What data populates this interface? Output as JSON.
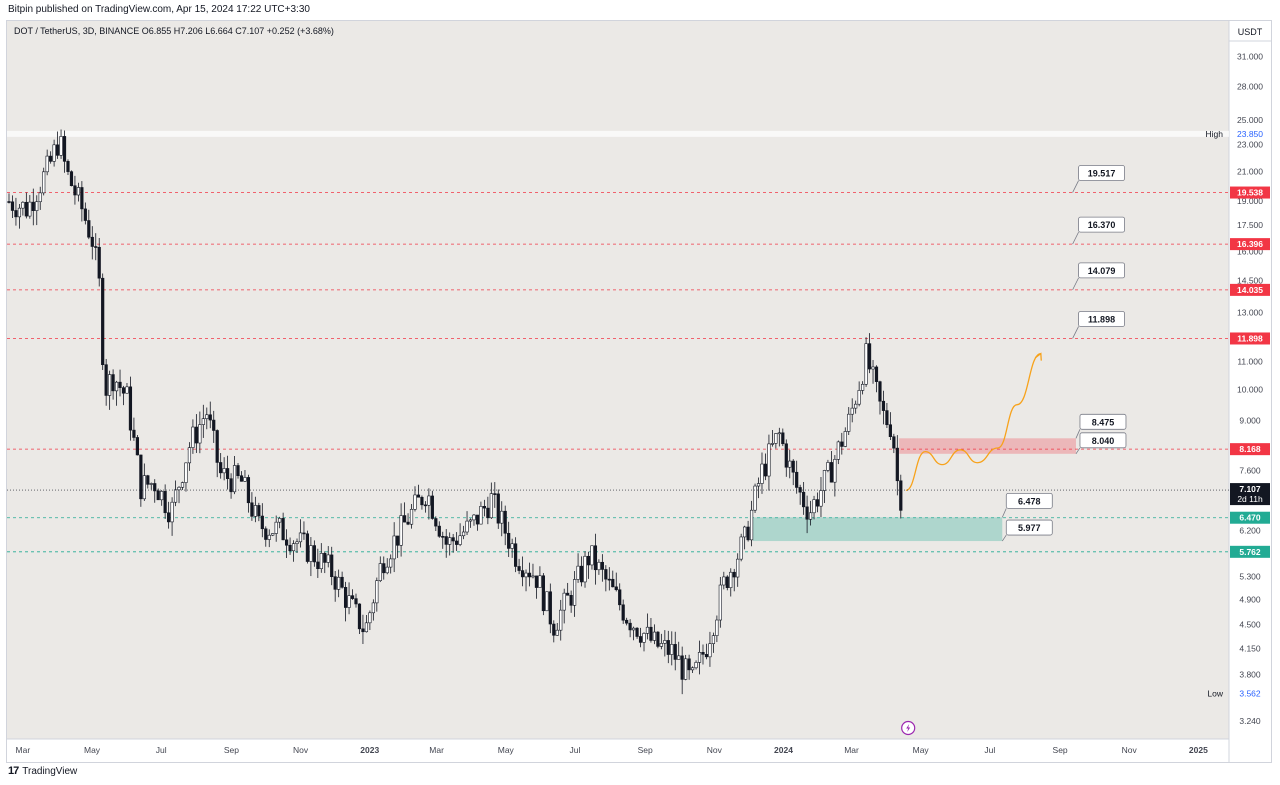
{
  "header": {
    "publisher_line": "Bitpin published on TradingView.com, Apr 15, 2024 17:22 UTC+3:30",
    "symbol_line": "DOT / TetherUS, 3D, BINANCE  O6.855  H7.206  L6.664  C7.107  +0.252 (+3.68%)"
  },
  "footer": {
    "brand": "TradingView",
    "logo_text": "17"
  },
  "colors": {
    "background": "#ebe9e6",
    "bull": "#ffffff",
    "bear": "#131722",
    "resistance": "#f23645",
    "support": "#22ab94",
    "projection": "#f7a21b"
  },
  "chart_data": {
    "type": "candlestick",
    "title": "",
    "xlabel": "",
    "ylabel": "",
    "y_scale": "log",
    "currency_label": "USDT",
    "ylim": [
      3.05,
      35.0
    ],
    "x_range": [
      "2022-02-15",
      "2025-01-28"
    ],
    "y_ticks": [
      "31.000",
      "28.000",
      "25.000",
      "23.000",
      "21.000",
      "19.000",
      "17.500",
      "16.000",
      "14.500",
      "13.000",
      "11.000",
      "10.000",
      "9.000",
      "7.600",
      "6.200",
      "5.300",
      "4.900",
      "4.500",
      "4.150",
      "3.800",
      "3.240"
    ],
    "x_ticks": [
      {
        "date": "2022-03-01",
        "label": "Mar",
        "bold": false
      },
      {
        "date": "2022-05-01",
        "label": "May",
        "bold": false
      },
      {
        "date": "2022-07-01",
        "label": "Jul",
        "bold": false
      },
      {
        "date": "2022-09-01",
        "label": "Sep",
        "bold": false
      },
      {
        "date": "2022-11-01",
        "label": "Nov",
        "bold": false
      },
      {
        "date": "2023-01-01",
        "label": "2023",
        "bold": true
      },
      {
        "date": "2023-03-01",
        "label": "Mar",
        "bold": false
      },
      {
        "date": "2023-05-01",
        "label": "May",
        "bold": false
      },
      {
        "date": "2023-07-01",
        "label": "Jul",
        "bold": false
      },
      {
        "date": "2023-09-01",
        "label": "Sep",
        "bold": false
      },
      {
        "date": "2023-11-01",
        "label": "Nov",
        "bold": false
      },
      {
        "date": "2024-01-01",
        "label": "2024",
        "bold": true
      },
      {
        "date": "2024-03-01",
        "label": "Mar",
        "bold": false
      },
      {
        "date": "2024-05-01",
        "label": "May",
        "bold": false
      },
      {
        "date": "2024-07-01",
        "label": "Jul",
        "bold": false
      },
      {
        "date": "2024-09-01",
        "label": "Sep",
        "bold": false
      },
      {
        "date": "2024-11-01",
        "label": "Nov",
        "bold": false
      },
      {
        "date": "2025-01-01",
        "label": "2025",
        "bold": true
      }
    ],
    "price_path": [
      {
        "date": "2022-02-15",
        "price": 19.0
      },
      {
        "date": "2022-03-05",
        "price": 18.5
      },
      {
        "date": "2022-03-25",
        "price": 21.5
      },
      {
        "date": "2022-04-02",
        "price": 23.5
      },
      {
        "date": "2022-04-08",
        "price": 21.0
      },
      {
        "date": "2022-04-22",
        "price": 18.5
      },
      {
        "date": "2022-05-02",
        "price": 16.5
      },
      {
        "date": "2022-05-08",
        "price": 14.0
      },
      {
        "date": "2022-05-12",
        "price": 10.0
      },
      {
        "date": "2022-05-20",
        "price": 10.5
      },
      {
        "date": "2022-06-01",
        "price": 9.7
      },
      {
        "date": "2022-06-13",
        "price": 7.2
      },
      {
        "date": "2022-06-25",
        "price": 7.3
      },
      {
        "date": "2022-07-10",
        "price": 6.6
      },
      {
        "date": "2022-07-25",
        "price": 8.2
      },
      {
        "date": "2022-08-10",
        "price": 9.3
      },
      {
        "date": "2022-08-22",
        "price": 7.5
      },
      {
        "date": "2022-09-10",
        "price": 7.3
      },
      {
        "date": "2022-09-25",
        "price": 6.3
      },
      {
        "date": "2022-10-15",
        "price": 6.2
      },
      {
        "date": "2022-11-08",
        "price": 5.8
      },
      {
        "date": "2022-11-28",
        "price": 5.4
      },
      {
        "date": "2022-12-15",
        "price": 4.8
      },
      {
        "date": "2022-12-28",
        "price": 4.4
      },
      {
        "date": "2023-01-12",
        "price": 5.6
      },
      {
        "date": "2023-02-05",
        "price": 6.5
      },
      {
        "date": "2023-02-20",
        "price": 7.1
      },
      {
        "date": "2023-03-10",
        "price": 5.9
      },
      {
        "date": "2023-04-01",
        "price": 6.3
      },
      {
        "date": "2023-04-18",
        "price": 6.9
      },
      {
        "date": "2023-05-10",
        "price": 5.7
      },
      {
        "date": "2023-05-28",
        "price": 5.3
      },
      {
        "date": "2023-06-12",
        "price": 4.5
      },
      {
        "date": "2023-06-28",
        "price": 5.0
      },
      {
        "date": "2023-07-14",
        "price": 5.7
      },
      {
        "date": "2023-08-01",
        "price": 5.1
      },
      {
        "date": "2023-08-17",
        "price": 4.6
      },
      {
        "date": "2023-09-10",
        "price": 4.2
      },
      {
        "date": "2023-09-25",
        "price": 4.1
      },
      {
        "date": "2023-10-12",
        "price": 3.7
      },
      {
        "date": "2023-10-25",
        "price": 4.2
      },
      {
        "date": "2023-11-10",
        "price": 5.2
      },
      {
        "date": "2023-11-28",
        "price": 6.0
      },
      {
        "date": "2023-12-12",
        "price": 7.5
      },
      {
        "date": "2023-12-28",
        "price": 8.6
      },
      {
        "date": "2024-01-12",
        "price": 7.2
      },
      {
        "date": "2024-01-24",
        "price": 6.6
      },
      {
        "date": "2024-02-10",
        "price": 7.5
      },
      {
        "date": "2024-02-28",
        "price": 9.0
      },
      {
        "date": "2024-03-14",
        "price": 11.2
      },
      {
        "date": "2024-03-28",
        "price": 9.2
      },
      {
        "date": "2024-04-06",
        "price": 8.8
      },
      {
        "date": "2024-04-12",
        "price": 6.855
      },
      {
        "date": "2024-04-15",
        "price": 7.107
      }
    ],
    "levels": [
      {
        "price": 19.538,
        "label": "19.538",
        "style": "red-dashed",
        "callout": "19.517"
      },
      {
        "price": 16.396,
        "label": "16.396",
        "style": "red-dashed",
        "callout": "16.370"
      },
      {
        "price": 14.035,
        "label": "14.035",
        "style": "red-dashed",
        "callout": "14.079"
      },
      {
        "price": 11.898,
        "label": "11.898",
        "style": "red-dashed",
        "callout": "11.898"
      },
      {
        "price": 8.168,
        "label": "8.168",
        "style": "red-dashed",
        "callout": ""
      },
      {
        "price": 6.47,
        "label": "6.470",
        "style": "green-dashed",
        "callout": ""
      },
      {
        "price": 5.762,
        "label": "5.762",
        "style": "green-dashed",
        "callout": ""
      }
    ],
    "zones": [
      {
        "kind": "resistance",
        "from": "2024-04-12",
        "to": "2024-09-15",
        "top": 8.475,
        "bottom": 8.04,
        "top_label": "8.475",
        "bottom_label": "8.040"
      },
      {
        "kind": "support",
        "from": "2023-12-05",
        "to": "2024-07-12",
        "top": 6.478,
        "bottom": 5.977,
        "top_label": "6.478",
        "bottom_label": "5.977"
      }
    ],
    "high_marker": {
      "label": "High",
      "value": "23.850",
      "price": 23.85
    },
    "low_marker": {
      "label": "Low",
      "value": "3.562",
      "price": 3.562
    },
    "last_price": {
      "price": 7.107,
      "value": "7.107",
      "countdown": "2d 11h"
    },
    "projection_path": [
      {
        "date": "2024-04-18",
        "price": 7.1
      },
      {
        "date": "2024-05-05",
        "price": 8.1
      },
      {
        "date": "2024-05-20",
        "price": 7.75
      },
      {
        "date": "2024-06-05",
        "price": 8.15
      },
      {
        "date": "2024-06-20",
        "price": 7.8
      },
      {
        "date": "2024-07-08",
        "price": 8.2
      },
      {
        "date": "2024-07-25",
        "price": 9.5
      },
      {
        "date": "2024-08-15",
        "price": 11.3
      }
    ]
  }
}
